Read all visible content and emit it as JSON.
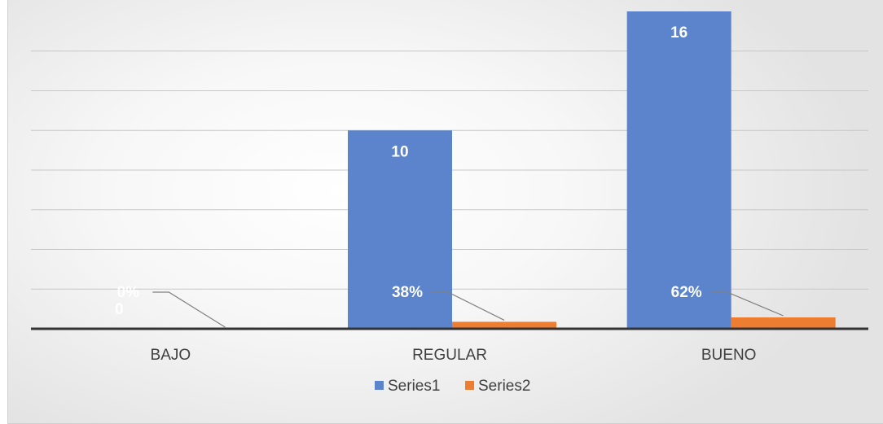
{
  "chart_data": {
    "type": "bar",
    "categories": [
      "BAJO",
      "REGULAR",
      "BUENO"
    ],
    "series": [
      {
        "name": "Series1",
        "values": [
          0,
          10,
          16
        ],
        "data_labels": [
          "0",
          "10",
          "16"
        ],
        "color": "#5b84cc"
      },
      {
        "name": "Series2",
        "values": [
          0,
          0.38,
          0.62
        ],
        "data_labels": [
          "0%",
          "38%",
          "62%"
        ],
        "color": "#ed7d31"
      }
    ],
    "ylim": [
      0,
      16
    ],
    "grid": true,
    "legend": "bottom",
    "axis_color": "#333333",
    "grid_color": "#c8c8c8"
  }
}
